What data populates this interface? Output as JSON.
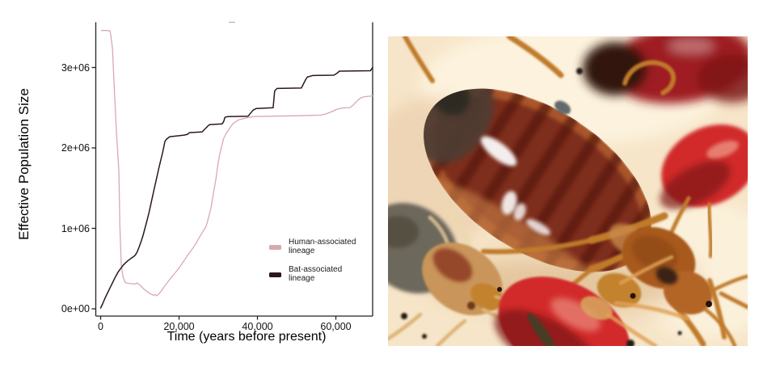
{
  "page": {
    "background": "#ffffff"
  },
  "chart": {
    "ylabel": "Effective Population Size",
    "xlabel": "Time (years before present)",
    "axis_color": "#222222",
    "stray_mark_color": "#b3b3b3",
    "yticks": [
      {
        "label": "0e+00",
        "value": 0
      },
      {
        "label": "1e+06",
        "value": 1000000
      },
      {
        "label": "2e+06",
        "value": 2000000
      },
      {
        "label": "3e+06",
        "value": 3000000
      }
    ],
    "xticks": [
      {
        "label": "0",
        "value": 0
      },
      {
        "label": "20,000",
        "value": 20000
      },
      {
        "label": "40,000",
        "value": 40000
      },
      {
        "label": "60,000",
        "value": 60000
      }
    ],
    "legend": [
      {
        "label": "Human-associated lineage",
        "color": "#d9a8b0"
      },
      {
        "label": "Bat-associated lineage",
        "color": "#2b181b"
      }
    ]
  },
  "chart_data": {
    "type": "line",
    "title": "",
    "xlabel": "Time (years before present)",
    "ylabel": "Effective Population Size",
    "xlim": [
      0,
      70000
    ],
    "ylim": [
      0,
      3560000
    ],
    "x_ticks": [
      0,
      20000,
      40000,
      60000
    ],
    "y_ticks": [
      0,
      1000000,
      2000000,
      3000000
    ],
    "grid": false,
    "legend_position": "inside-right",
    "series": [
      {
        "name": "Human-associated lineage",
        "color": "#d9a8b0",
        "points": [
          [
            200,
            3460000
          ],
          [
            1600,
            3460000
          ],
          [
            2400,
            3455000
          ],
          [
            2600,
            3400000
          ],
          [
            3000,
            3240000
          ],
          [
            3400,
            2830000
          ],
          [
            4000,
            2230000
          ],
          [
            4650,
            1700000
          ],
          [
            4900,
            1030000
          ],
          [
            5260,
            550000
          ],
          [
            5700,
            400000
          ],
          [
            6300,
            325000
          ],
          [
            7000,
            318000
          ],
          [
            8000,
            312000
          ],
          [
            8800,
            310000
          ],
          [
            9400,
            320000
          ],
          [
            9900,
            300000
          ],
          [
            10600,
            265000
          ],
          [
            11300,
            235000
          ],
          [
            12100,
            205000
          ],
          [
            12900,
            182000
          ],
          [
            13500,
            168000
          ],
          [
            13900,
            178000
          ],
          [
            14300,
            162000
          ],
          [
            14900,
            188000
          ],
          [
            15500,
            225000
          ],
          [
            16300,
            282000
          ],
          [
            17100,
            332000
          ],
          [
            18100,
            395000
          ],
          [
            19100,
            452000
          ],
          [
            20100,
            515000
          ],
          [
            21100,
            585000
          ],
          [
            22100,
            660000
          ],
          [
            23100,
            725000
          ],
          [
            24100,
            795000
          ],
          [
            25100,
            880000
          ],
          [
            26100,
            962000
          ],
          [
            26900,
            1025000
          ],
          [
            27500,
            1130000
          ],
          [
            28100,
            1245000
          ],
          [
            28500,
            1355000
          ],
          [
            28900,
            1475000
          ],
          [
            29400,
            1610000
          ],
          [
            29800,
            1755000
          ],
          [
            30300,
            1905000
          ],
          [
            30800,
            2010000
          ],
          [
            31400,
            2120000
          ],
          [
            32000,
            2180000
          ],
          [
            32700,
            2230000
          ],
          [
            33700,
            2300000
          ],
          [
            35200,
            2350000
          ],
          [
            37200,
            2375000
          ],
          [
            38900,
            2390000
          ],
          [
            44000,
            2395000
          ],
          [
            50000,
            2400000
          ],
          [
            56000,
            2408000
          ],
          [
            57400,
            2422000
          ],
          [
            59000,
            2452000
          ],
          [
            60300,
            2482000
          ],
          [
            61500,
            2495000
          ],
          [
            63600,
            2502000
          ],
          [
            64400,
            2532000
          ],
          [
            65200,
            2572000
          ],
          [
            65800,
            2602000
          ],
          [
            66500,
            2625000
          ],
          [
            67500,
            2638000
          ],
          [
            69600,
            2648000
          ]
        ]
      },
      {
        "name": "Bat-associated lineage",
        "color": "#2b181b",
        "points": [
          [
            0,
            10000
          ],
          [
            500,
            60000
          ],
          [
            1100,
            130000
          ],
          [
            1700,
            190000
          ],
          [
            2400,
            260000
          ],
          [
            3100,
            330000
          ],
          [
            3800,
            400000
          ],
          [
            4500,
            460000
          ],
          [
            5100,
            500000
          ],
          [
            5700,
            540000
          ],
          [
            6300,
            570000
          ],
          [
            7000,
            600000
          ],
          [
            7700,
            625000
          ],
          [
            8300,
            645000
          ],
          [
            8800,
            665000
          ],
          [
            9300,
            705000
          ],
          [
            9800,
            765000
          ],
          [
            10300,
            835000
          ],
          [
            10800,
            910000
          ],
          [
            11300,
            1000000
          ],
          [
            11800,
            1090000
          ],
          [
            12300,
            1190000
          ],
          [
            12800,
            1300000
          ],
          [
            13300,
            1410000
          ],
          [
            13800,
            1520000
          ],
          [
            14300,
            1630000
          ],
          [
            14800,
            1740000
          ],
          [
            15300,
            1840000
          ],
          [
            15800,
            1940000
          ],
          [
            16100,
            2010000
          ],
          [
            16400,
            2080000
          ],
          [
            16800,
            2110000
          ],
          [
            17600,
            2140000
          ],
          [
            19500,
            2150000
          ],
          [
            21300,
            2160000
          ],
          [
            22200,
            2170000
          ],
          [
            22600,
            2190000
          ],
          [
            25900,
            2200000
          ],
          [
            26500,
            2230000
          ],
          [
            27300,
            2270000
          ],
          [
            27800,
            2290000
          ],
          [
            31000,
            2300000
          ],
          [
            31400,
            2330000
          ],
          [
            31700,
            2380000
          ],
          [
            32400,
            2390000
          ],
          [
            37600,
            2395000
          ],
          [
            38200,
            2430000
          ],
          [
            38900,
            2470000
          ],
          [
            39700,
            2490000
          ],
          [
            44000,
            2500000
          ],
          [
            44400,
            2710000
          ],
          [
            45000,
            2740000
          ],
          [
            51200,
            2745000
          ],
          [
            52300,
            2850000
          ],
          [
            52700,
            2880000
          ],
          [
            54100,
            2900000
          ],
          [
            59500,
            2905000
          ],
          [
            60300,
            2930000
          ],
          [
            60900,
            2955000
          ],
          [
            68800,
            2960000
          ],
          [
            69400,
            3000000
          ]
        ]
      }
    ]
  },
  "photo": {
    "alt": "Macro photograph of bed bugs on pale skin: a large engorged reddish-brown adult in the centre with dark banded abdomen and white glare highlights, a blurred dark-red engorged bug at top right, a bright red recently-fed nymph at centre right, a pale unfed bed bug with grey mottled abdomen at lower left, a bright red engorged nymph at bottom centre, and orange legs and dark faecal specks scattered around.",
    "palette": {
      "cream-bg": "#f6e5c8",
      "cream-light": "#fdf4e0",
      "cream-rose": "#eccfae",
      "shadow-tan": "#d9b684",
      "bug-rim": "#a8562b",
      "bug-body": "#7e2f1d",
      "bug-stripe": "#551710",
      "bug-rear": "#4e3e36",
      "bug-rear2": "#2e2a24",
      "belly-light": "#c47c45",
      "bug-orange-head": "#a85a1e",
      "head-tan2": "#b36526",
      "pron-shade": "#8a4416",
      "dark-patch": "#3a2414",
      "eye-dark": "#27130a",
      "plate-tan": "#c98a4a",
      "plate-tan2": "#d8a860",
      "engorged-red": "#d22b2c",
      "crimson-dark": "#9e1f22",
      "crimson-edge": "#7e1518",
      "dark-end": "#321411",
      "sheen-pink": "#f4b49e",
      "pale-body": "#c9955a",
      "pale-gray": "#6d685c",
      "pale-gray-dark": "#514c3e",
      "pale-rim": "#ecd9b0",
      "pale-rim2": "#d9c294",
      "red-patch": "#8e3a22",
      "mouth-brown": "#6b3a18",
      "head-small-tan": "#c2822f",
      "leg-orange": "#c07a2a",
      "leg-pale": "#ddb478",
      "leg-light": "#e0a258",
      "streak-olive": "#3f4126",
      "speck-dark": "#241c12",
      "glare-white": "#ffffff",
      "bluegray-spot": "#4a525a"
    }
  }
}
